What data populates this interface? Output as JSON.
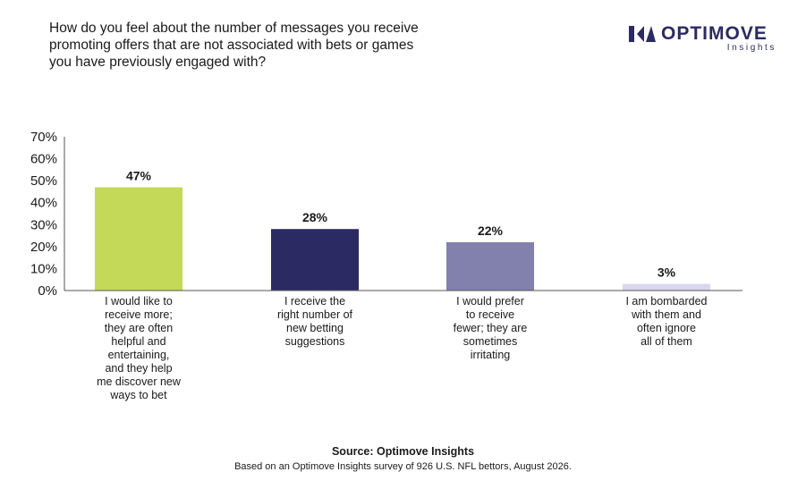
{
  "header": {
    "title": "How do you feel about the number of messages you receive\npromoting offers that are not associated with bets or games\nyou have previously engaged with?"
  },
  "logo": {
    "name": "OPTIMOVE",
    "sub": "Insights",
    "icon": "optimove-logo-icon",
    "color": "#2b2a63"
  },
  "chart_data": {
    "type": "bar",
    "categories": [
      "I would like to receive more; they are often helpful and entertaining, and they help me discover new ways to bet",
      "I receive the right number of new betting suggestions",
      "I would prefer to receive fewer; they are sometimes irritating",
      "I am bombarded with them and often ignore all of them"
    ],
    "category_lines": [
      [
        "I would like to",
        "receive more;",
        "they are often",
        "helpful and",
        "entertaining,",
        "and they help",
        "me discover new",
        "ways to bet"
      ],
      [
        "I receive the",
        "right number of",
        "new betting",
        "suggestions"
      ],
      [
        "I would prefer",
        "to receive",
        "fewer; they are",
        "sometimes",
        "irritating"
      ],
      [
        "I am bombarded",
        "with them and",
        "often ignore",
        "all of them"
      ]
    ],
    "values": [
      47,
      28,
      22,
      3
    ],
    "value_labels": [
      "47%",
      "28%",
      "22%",
      "3%"
    ],
    "colors": [
      "#c3d957",
      "#2b2a63",
      "#8280ad",
      "#d9d7ee"
    ],
    "yticks": [
      "0%",
      "10%",
      "20%",
      "30%",
      "40%",
      "50%",
      "60%",
      "70%"
    ],
    "ylim": [
      0,
      70
    ],
    "grid": false,
    "title": "",
    "xlabel": "",
    "ylabel": ""
  },
  "footer": {
    "source": "Source: Optimove Insights",
    "note": "Based on an Optimove Insights survey of 926 U.S. NFL bettors, August 2026."
  }
}
